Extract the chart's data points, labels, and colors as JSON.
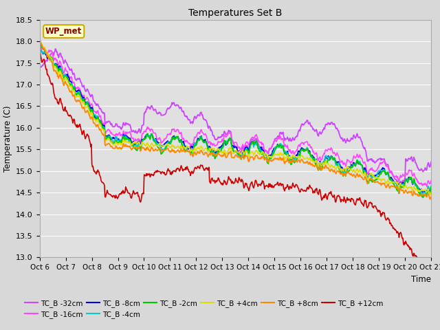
{
  "title": "Temperatures Set B",
  "xlabel": "Time",
  "ylabel": "Temperature (C)",
  "ylim": [
    13.0,
    18.5
  ],
  "series_order": [
    "TC_B -32cm",
    "TC_B -16cm",
    "TC_B -8cm",
    "TC_B -4cm",
    "TC_B -2cm",
    "TC_B +4cm",
    "TC_B +8cm",
    "TC_B +12cm"
  ],
  "colors": {
    "TC_B -32cm": "#cc44ff",
    "TC_B -16cm": "#ff44ff",
    "TC_B -8cm": "#0000dd",
    "TC_B -4cm": "#00cccc",
    "TC_B -2cm": "#00cc00",
    "TC_B +4cm": "#dddd00",
    "TC_B +8cm": "#ff8800",
    "TC_B +12cm": "#cc0000"
  },
  "xtick_labels": [
    "Oct 6",
    "Oct 7",
    "Oct 8",
    "Oct 9",
    "Oct 10",
    "Oct 11",
    "Oct 12",
    "Oct 13",
    "Oct 14",
    "Oct 15",
    "Oct 16",
    "Oct 17",
    "Oct 18",
    "Oct 19",
    "Oct 20",
    "Oct 21"
  ],
  "ytick_values": [
    13.0,
    13.5,
    14.0,
    14.5,
    15.0,
    15.5,
    16.0,
    16.5,
    17.0,
    17.5,
    18.0,
    18.5
  ],
  "wp_met_box_color": "#ffffcc",
  "wp_met_border_color": "#ccaa00",
  "wp_met_text_color": "#880000",
  "fig_bg_color": "#d8d8d8",
  "plot_bg_color": "#e0e0e0",
  "grid_color": "#ffffff"
}
